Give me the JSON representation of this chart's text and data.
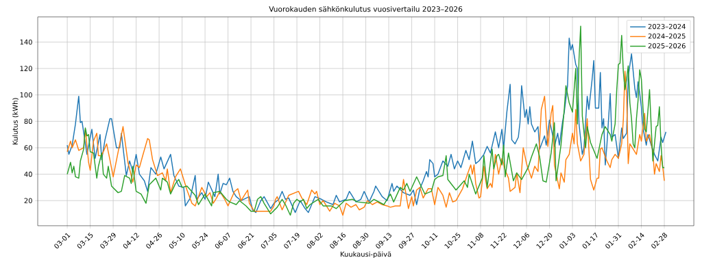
{
  "chart_data": {
    "type": "line",
    "title": "Vuorokauden sähkönkulutus vuosivertailu 2023–2026",
    "xlabel": "Kuukausi-päivä",
    "ylabel": "Kulutus (kWh)",
    "xlim": [
      "2023-02-11",
      "2024-03-17"
    ],
    "ylim": [
      1,
      159
    ],
    "xticks": [
      {
        "value": "2023-03-01",
        "label": "03-01"
      },
      {
        "value": "2023-03-15",
        "label": "03-15"
      },
      {
        "value": "2023-03-29",
        "label": "03-29"
      },
      {
        "value": "2023-04-12",
        "label": "04-12"
      },
      {
        "value": "2023-04-26",
        "label": "04-26"
      },
      {
        "value": "2023-05-10",
        "label": "05-10"
      },
      {
        "value": "2023-05-24",
        "label": "05-24"
      },
      {
        "value": "2023-06-07",
        "label": "06-07"
      },
      {
        "value": "2023-06-21",
        "label": "06-21"
      },
      {
        "value": "2023-07-05",
        "label": "07-05"
      },
      {
        "value": "2023-07-19",
        "label": "07-19"
      },
      {
        "value": "2023-08-02",
        "label": "08-02"
      },
      {
        "value": "2023-08-16",
        "label": "08-16"
      },
      {
        "value": "2023-08-30",
        "label": "08-30"
      },
      {
        "value": "2023-09-13",
        "label": "09-13"
      },
      {
        "value": "2023-09-27",
        "label": "09-27"
      },
      {
        "value": "2023-10-11",
        "label": "10-11"
      },
      {
        "value": "2023-10-25",
        "label": "10-25"
      },
      {
        "value": "2023-11-08",
        "label": "11-08"
      },
      {
        "value": "2023-11-22",
        "label": "11-22"
      },
      {
        "value": "2023-12-06",
        "label": "12-06"
      },
      {
        "value": "2023-12-20",
        "label": "12-20"
      },
      {
        "value": "2024-01-03",
        "label": "01-03"
      },
      {
        "value": "2024-01-17",
        "label": "01-17"
      },
      {
        "value": "2024-01-31",
        "label": "01-31"
      },
      {
        "value": "2024-02-14",
        "label": "02-14"
      },
      {
        "value": "2024-02-28",
        "label": "02-28"
      }
    ],
    "yticks": [
      20,
      40,
      60,
      80,
      100,
      120,
      140
    ],
    "grid": true,
    "legend": "top right",
    "series": [
      {
        "name": "2023–2024",
        "color": "#1f77b4",
        "x": [
          "2023-03-01",
          "2023-03-02",
          "2023-03-04",
          "2023-03-06",
          "2023-03-08",
          "2023-03-09",
          "2023-03-10",
          "2023-03-13",
          "2023-03-16",
          "2023-03-18",
          "2023-03-21",
          "2023-03-22",
          "2023-03-24",
          "2023-03-27",
          "2023-03-28",
          "2023-03-31",
          "2023-04-02",
          "2023-04-03",
          "2023-04-06",
          "2023-04-08",
          "2023-04-10",
          "2023-04-12",
          "2023-04-14",
          "2023-04-17",
          "2023-04-19",
          "2023-04-21",
          "2023-04-24",
          "2023-04-27",
          "2023-04-29",
          "2023-05-03",
          "2023-05-05",
          "2023-05-08",
          "2023-05-11",
          "2023-05-12",
          "2023-05-15",
          "2023-05-18",
          "2023-05-19",
          "2023-05-22",
          "2023-05-24",
          "2023-05-26",
          "2023-05-30",
          "2023-06-01",
          "2023-06-02",
          "2023-06-04",
          "2023-06-06",
          "2023-06-08",
          "2023-06-10",
          "2023-06-12",
          "2023-06-15",
          "2023-06-20",
          "2023-06-22",
          "2023-06-24",
          "2023-06-27",
          "2023-06-29",
          "2023-07-03",
          "2023-07-05",
          "2023-07-08",
          "2023-07-10",
          "2023-07-12",
          "2023-07-14",
          "2023-07-18",
          "2023-07-21",
          "2023-07-24",
          "2023-07-26",
          "2023-07-30",
          "2023-08-03",
          "2023-08-06",
          "2023-08-10",
          "2023-08-12",
          "2023-08-14",
          "2023-08-18",
          "2023-08-20",
          "2023-08-24",
          "2023-08-27",
          "2023-08-29",
          "2023-09-01",
          "2023-09-04",
          "2023-09-05",
          "2023-09-09",
          "2023-09-12",
          "2023-09-15",
          "2023-09-16",
          "2023-09-18",
          "2023-09-22",
          "2023-09-26",
          "2023-09-28",
          "2023-09-30",
          "2023-10-02",
          "2023-10-04",
          "2023-10-06",
          "2023-10-07",
          "2023-10-08",
          "2023-10-10",
          "2023-10-11",
          "2023-10-13",
          "2023-10-16",
          "2023-10-19",
          "2023-10-21",
          "2023-10-23",
          "2023-10-25",
          "2023-10-27",
          "2023-10-30",
          "2023-11-01",
          "2023-11-03",
          "2023-11-05",
          "2023-11-07",
          "2023-11-10",
          "2023-11-12",
          "2023-11-14",
          "2023-11-17",
          "2023-11-19",
          "2023-11-21",
          "2023-11-22",
          "2023-11-24",
          "2023-11-26",
          "2023-11-27",
          "2023-11-29",
          "2023-12-01",
          "2023-12-02",
          "2023-12-03",
          "2023-12-05",
          "2023-12-06",
          "2023-12-07",
          "2023-12-08",
          "2023-12-09",
          "2023-12-11",
          "2023-12-13",
          "2023-12-14",
          "2023-12-17",
          "2023-12-18",
          "2023-12-20",
          "2023-12-22",
          "2023-12-23",
          "2023-12-25",
          "2023-12-26",
          "2023-12-28",
          "2023-12-29",
          "2023-12-31",
          "2024-01-01",
          "2024-01-02",
          "2024-01-03",
          "2024-01-05",
          "2024-01-06",
          "2024-01-07",
          "2024-01-09",
          "2024-01-10",
          "2024-01-12",
          "2024-01-13",
          "2024-01-15",
          "2024-01-16",
          "2024-01-17",
          "2024-01-19",
          "2024-01-20",
          "2024-01-21",
          "2024-01-22",
          "2024-01-23",
          "2024-01-24",
          "2024-01-26",
          "2024-01-27",
          "2024-01-29",
          "2024-01-31",
          "2024-02-02",
          "2024-02-03",
          "2024-02-05",
          "2024-02-06",
          "2024-02-08",
          "2024-02-10",
          "2024-02-11",
          "2024-02-12",
          "2024-02-13",
          "2024-02-14",
          "2024-02-15",
          "2024-02-17",
          "2024-02-18",
          "2024-02-20",
          "2024-02-22",
          "2024-02-24",
          "2024-02-26",
          "2024-02-27",
          "2024-02-29"
        ],
        "values": [
          62,
          55,
          62,
          78,
          99,
          79,
          80,
          55,
          74,
          52,
          70,
          51,
          66,
          82,
          82,
          60,
          60,
          71,
          39,
          50,
          42,
          55,
          40,
          35,
          27,
          45,
          40,
          53,
          44,
          55,
          39,
          31,
          30,
          16,
          22,
          39,
          21,
          26,
          21,
          34,
          23,
          40,
          25,
          33,
          32,
          37,
          27,
          23,
          20,
          23,
          13,
          11,
          20,
          23,
          14,
          18,
          21,
          27,
          21,
          22,
          11,
          20,
          14,
          11,
          23,
          21,
          19,
          17,
          24,
          19,
          21,
          27,
          19,
          21,
          27,
          19,
          27,
          31,
          23,
          20,
          33,
          27,
          31,
          26,
          24,
          28,
          17,
          29,
          35,
          42,
          38,
          51,
          48,
          38,
          40,
          50,
          46,
          55,
          44,
          50,
          45,
          58,
          51,
          65,
          48,
          50,
          55,
          61,
          56,
          72,
          60,
          74,
          59,
          87,
          108,
          66,
          63,
          68,
          79,
          107,
          83,
          89,
          78,
          91,
          78,
          72,
          76,
          59,
          69,
          62,
          81,
          69,
          61,
          71,
          62,
          80,
          87,
          107,
          143,
          134,
          138,
          123,
          120,
          78,
          55,
          60,
          99,
          89,
          112,
          126,
          90,
          90,
          117,
          75,
          82,
          47,
          62,
          101,
          68,
          70,
          52,
          75,
          67,
          71,
          114,
          131,
          105,
          98,
          110,
          101,
          91,
          75,
          62,
          70,
          62,
          55,
          50,
          68,
          64,
          72
        ]
      },
      {
        "name": "2024–2025",
        "color": "#ff7f0e",
        "x": [
          "2023-03-01",
          "2023-03-03",
          "2023-03-04",
          "2023-03-06",
          "2023-03-08",
          "2023-03-11",
          "2023-03-12",
          "2023-03-14",
          "2023-03-15",
          "2023-03-17",
          "2023-03-19",
          "2023-03-20",
          "2023-03-22",
          "2023-03-25",
          "2023-03-27",
          "2023-03-29",
          "2023-04-02",
          "2023-04-04",
          "2023-04-07",
          "2023-04-10",
          "2023-04-12",
          "2023-04-14",
          "2023-04-16",
          "2023-04-19",
          "2023-04-20",
          "2023-04-22",
          "2023-04-25",
          "2023-04-28",
          "2023-04-30",
          "2023-05-01",
          "2023-05-03",
          "2023-05-06",
          "2023-05-09",
          "2023-05-13",
          "2023-05-16",
          "2023-05-18",
          "2023-05-22",
          "2023-05-25",
          "2023-05-27",
          "2023-05-29",
          "2023-05-31",
          "2023-06-02",
          "2023-06-05",
          "2023-06-07",
          "2023-06-11",
          "2023-06-13",
          "2023-06-15",
          "2023-06-17",
          "2023-06-19",
          "2023-06-20",
          "2023-06-23",
          "2023-07-03",
          "2023-07-05",
          "2023-07-06",
          "2023-07-07",
          "2023-07-10",
          "2023-07-14",
          "2023-07-20",
          "2023-07-22",
          "2023-07-25",
          "2023-07-28",
          "2023-07-30",
          "2023-07-31",
          "2023-08-02",
          "2023-08-04",
          "2023-08-08",
          "2023-08-11",
          "2023-08-14",
          "2023-08-16",
          "2023-08-18",
          "2023-08-21",
          "2023-08-24",
          "2023-08-26",
          "2023-08-29",
          "2023-08-31",
          "2023-09-03",
          "2023-09-06",
          "2023-09-09",
          "2023-09-12",
          "2023-09-14",
          "2023-09-17",
          "2023-09-20",
          "2023-09-22",
          "2023-09-25",
          "2023-09-27",
          "2023-09-28",
          "2023-09-30",
          "2023-10-02",
          "2023-10-04",
          "2023-10-07",
          "2023-10-09",
          "2023-10-11",
          "2023-10-13",
          "2023-10-16",
          "2023-10-18",
          "2023-10-20",
          "2023-10-22",
          "2023-10-24",
          "2023-10-28",
          "2023-10-31",
          "2023-11-02",
          "2023-11-03",
          "2023-11-04",
          "2023-11-05",
          "2023-11-07",
          "2023-11-08",
          "2023-11-10",
          "2023-11-11",
          "2023-11-12",
          "2023-11-14",
          "2023-11-15",
          "2023-11-17",
          "2023-11-19",
          "2023-11-21",
          "2023-11-23",
          "2023-11-25",
          "2023-11-26",
          "2023-11-29",
          "2023-11-30",
          "2023-12-02",
          "2023-12-04",
          "2023-12-06",
          "2023-12-09",
          "2023-12-11",
          "2023-12-13",
          "2023-12-15",
          "2023-12-17",
          "2023-12-18",
          "2023-12-19",
          "2023-12-21",
          "2023-12-22",
          "2023-12-23",
          "2023-12-26",
          "2023-12-27",
          "2023-12-29",
          "2023-12-30",
          "2024-01-01",
          "2024-01-03",
          "2024-01-04",
          "2024-01-05",
          "2024-01-06",
          "2024-01-08",
          "2024-01-10",
          "2024-01-12",
          "2024-01-14",
          "2024-01-16",
          "2024-01-18",
          "2024-01-19",
          "2024-01-20",
          "2024-01-21",
          "2024-01-24",
          "2024-01-26",
          "2024-01-27",
          "2024-01-29",
          "2024-01-31",
          "2024-02-02",
          "2024-02-03",
          "2024-02-04",
          "2024-02-05",
          "2024-02-06",
          "2024-02-07",
          "2024-02-09",
          "2024-02-11",
          "2024-02-13",
          "2024-02-14",
          "2024-02-16",
          "2024-02-17",
          "2024-02-19",
          "2024-02-21",
          "2024-02-22",
          "2024-02-23",
          "2024-02-25",
          "2024-02-26",
          "2024-02-27",
          "2024-02-28"
        ],
        "values": [
          57,
          65,
          60,
          66,
          58,
          60,
          74,
          49,
          43,
          65,
          71,
          54,
          54,
          63,
          51,
          38,
          63,
          76,
          49,
          34,
          47,
          45,
          54,
          67,
          66,
          51,
          39,
          41,
          35,
          44,
          26,
          38,
          44,
          28,
          18,
          16,
          30,
          23,
          26,
          18,
          22,
          27,
          21,
          16,
          27,
          29,
          20,
          24,
          28,
          18,
          12,
          12,
          16,
          21,
          23,
          13,
          24,
          27,
          22,
          17,
          28,
          25,
          27,
          17,
          20,
          12,
          18,
          16,
          9,
          18,
          15,
          17,
          13,
          15,
          20,
          17,
          19,
          17,
          16,
          15,
          16,
          16,
          36,
          14,
          23,
          16,
          28,
          30,
          22,
          29,
          29,
          17,
          30,
          24,
          15,
          26,
          19,
          20,
          29,
          40,
          47,
          40,
          47,
          33,
          22,
          23,
          46,
          36,
          29,
          33,
          30,
          55,
          40,
          52,
          43,
          37,
          27,
          30,
          41,
          26,
          60,
          48,
          37,
          46,
          42,
          89,
          99,
          79,
          61,
          86,
          92,
          47,
          29,
          41,
          34,
          51,
          55,
          71,
          63,
          89,
          63,
          50,
          55,
          82,
          36,
          28,
          37,
          37,
          59,
          60,
          50,
          45,
          51,
          55,
          52,
          63,
          81,
          118,
          101,
          48,
          63,
          59,
          55,
          70,
          65,
          86,
          65,
          70,
          57,
          40,
          48,
          42,
          54,
          46,
          35
        ]
      },
      {
        "name": "2025–2026",
        "color": "#2ca02c",
        "x": [
          "2023-03-01",
          "2023-03-03",
          "2023-03-04",
          "2023-03-05",
          "2023-03-06",
          "2023-03-08",
          "2023-03-09",
          "2023-03-11",
          "2023-03-12",
          "2023-03-13",
          "2023-03-14",
          "2023-03-15",
          "2023-03-17",
          "2023-03-19",
          "2023-03-20",
          "2023-03-22",
          "2023-03-23",
          "2023-03-25",
          "2023-03-26",
          "2023-03-28",
          "2023-04-01",
          "2023-04-03",
          "2023-04-05",
          "2023-04-08",
          "2023-04-09",
          "2023-04-10",
          "2023-04-12",
          "2023-04-15",
          "2023-04-18",
          "2023-04-20",
          "2023-04-24",
          "2023-04-27",
          "2023-04-28",
          "2023-05-01",
          "2023-05-03",
          "2023-05-06",
          "2023-05-08",
          "2023-05-10",
          "2023-05-13",
          "2023-05-18",
          "2023-05-20",
          "2023-05-24",
          "2023-05-28",
          "2023-05-29",
          "2023-06-02",
          "2023-06-06",
          "2023-06-08",
          "2023-06-12",
          "2023-06-14",
          "2023-06-18",
          "2023-06-21",
          "2023-06-23",
          "2023-06-25",
          "2023-06-27",
          "2023-06-29",
          "2023-07-03",
          "2023-07-07",
          "2023-07-10",
          "2023-07-12",
          "2023-07-15",
          "2023-07-17",
          "2023-07-19",
          "2023-07-21",
          "2023-07-23",
          "2023-07-25",
          "2023-07-27",
          "2023-08-01",
          "2023-08-04",
          "2023-08-09",
          "2023-08-12",
          "2023-08-17",
          "2023-08-22",
          "2023-08-25",
          "2023-09-01",
          "2023-09-04",
          "2023-09-10",
          "2023-09-14",
          "2023-09-16",
          "2023-09-20",
          "2023-09-22",
          "2023-09-24",
          "2023-09-26",
          "2023-09-30",
          "2023-10-05",
          "2023-10-09",
          "2023-10-11",
          "2023-10-13",
          "2023-10-16",
          "2023-10-18",
          "2023-10-19",
          "2023-10-24",
          "2023-10-29",
          "2023-10-31",
          "2023-11-01",
          "2023-11-05",
          "2023-11-09",
          "2023-11-10",
          "2023-11-12",
          "2023-11-15",
          "2023-11-16",
          "2023-11-18",
          "2023-11-19",
          "2023-11-21",
          "2023-11-22",
          "2023-11-23",
          "2023-11-25",
          "2023-11-28",
          "2023-11-30",
          "2023-12-03",
          "2023-12-07",
          "2023-12-09",
          "2023-12-12",
          "2023-12-14",
          "2023-12-16",
          "2023-12-18",
          "2023-12-21",
          "2023-12-23",
          "2023-12-24",
          "2023-12-27",
          "2023-12-29",
          "2023-12-30",
          "2024-01-01",
          "2024-01-03",
          "2024-01-05",
          "2024-01-06",
          "2024-01-07",
          "2024-01-08",
          "2024-01-09",
          "2024-01-11",
          "2024-01-12",
          "2024-01-14",
          "2024-01-16",
          "2024-01-18",
          "2024-01-21",
          "2024-01-23",
          "2024-01-26",
          "2024-01-27",
          "2024-01-29",
          "2024-01-30",
          "2024-01-31",
          "2024-02-01",
          "2024-02-02",
          "2024-02-03",
          "2024-02-04",
          "2024-02-05",
          "2024-02-06",
          "2024-02-07",
          "2024-02-08",
          "2024-02-09",
          "2024-02-10",
          "2024-02-11",
          "2024-02-12",
          "2024-02-13",
          "2024-02-14",
          "2024-02-15",
          "2024-02-16",
          "2024-02-17",
          "2024-02-18",
          "2024-02-19",
          "2024-02-20",
          "2024-02-21",
          "2024-02-23",
          "2024-02-24",
          "2024-02-25",
          "2024-02-26",
          "2024-02-27",
          "2024-02-28"
        ],
        "values": [
          40,
          49,
          41,
          46,
          38,
          37,
          50,
          59,
          75,
          69,
          70,
          57,
          56,
          37,
          46,
          56,
          40,
          37,
          46,
          31,
          26,
          27,
          39,
          37,
          33,
          46,
          27,
          25,
          18,
          32,
          37,
          28,
          37,
          34,
          25,
          33,
          36,
          30,
          31,
          24,
          17,
          25,
          16,
          26,
          27,
          21,
          19,
          17,
          20,
          16,
          12,
          12,
          21,
          23,
          18,
          10,
          15,
          21,
          17,
          9,
          18,
          21,
          19,
          21,
          14,
          17,
          21,
          16,
          16,
          14,
          20,
          21,
          19,
          18,
          21,
          17,
          25,
          19,
          30,
          28,
          33,
          27,
          38,
          25,
          27,
          36,
          38,
          39,
          54,
          36,
          28,
          35,
          30,
          40,
          25,
          37,
          54,
          30,
          59,
          44,
          54,
          55,
          47,
          62,
          38,
          56,
          35,
          41,
          36,
          45,
          53,
          63,
          53,
          35,
          34,
          56,
          79,
          35,
          62,
          89,
          107,
          94,
          87,
          120,
          78,
          127,
          152,
          84,
          60,
          76,
          64,
          58,
          52,
          70,
          76,
          70,
          65,
          78,
          104,
          123,
          124,
          145,
          118,
          104,
          112,
          122,
          94,
          82,
          63,
          60,
          82,
          96,
          119,
          112,
          90,
          74,
          72,
          88,
          104,
          76,
          50,
          76,
          77,
          91,
          62,
          45,
          45
        ]
      }
    ]
  }
}
